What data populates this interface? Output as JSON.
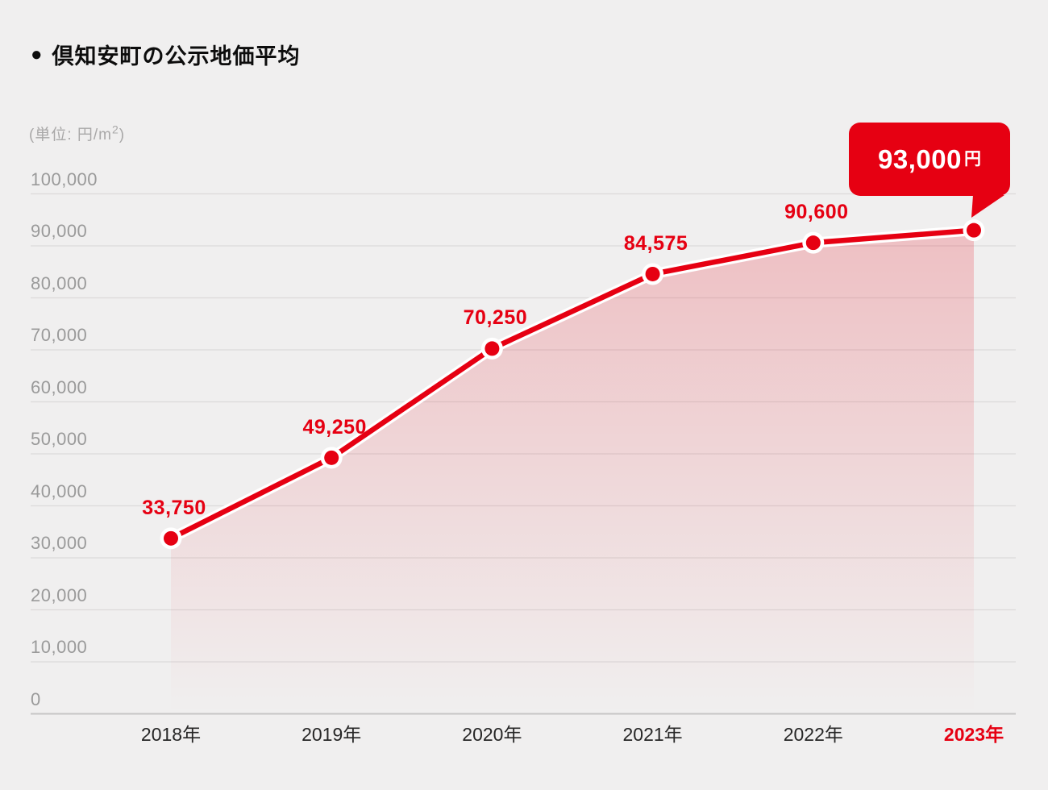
{
  "header": {
    "bullet": "●",
    "title": "倶知安町の公示地価平均"
  },
  "unit": {
    "prefix": "(単位: 円/m",
    "sup": "2",
    "suffix": ")"
  },
  "colors": {
    "accent_red": "#e60012",
    "background": "#f0efef",
    "grid": "#dbdada",
    "axis_baseline": "#c6c4c4",
    "ytick_text": "#9a9a9a",
    "xtick_text": "#262626",
    "line_casing": "#ffffff",
    "fill_top": "rgba(230,0,18,0.20)",
    "fill_bottom": "rgba(230,0,18,0)"
  },
  "chart_data": {
    "type": "area",
    "title": "倶知安町の公示地価平均",
    "unit": "円/m2",
    "categories": [
      "2018年",
      "2019年",
      "2020年",
      "2021年",
      "2022年",
      "2023年"
    ],
    "values": [
      33750,
      49250,
      70250,
      84575,
      90600,
      93000
    ],
    "point_labels": [
      "33,750",
      "49,250",
      "70,250",
      "84,575",
      "90,600",
      ""
    ],
    "callout": {
      "value_label": "93,000",
      "suffix": "円",
      "applies_to": "2023年"
    },
    "ylim": [
      0,
      100000
    ],
    "ytick_step": 10000,
    "ytick_labels": [
      "0",
      "10,000",
      "20,000",
      "30,000",
      "40,000",
      "50,000",
      "60,000",
      "70,000",
      "80,000",
      "90,000",
      "100,000"
    ],
    "grid": true,
    "legend_position": "none",
    "highlight_last_category": true
  }
}
